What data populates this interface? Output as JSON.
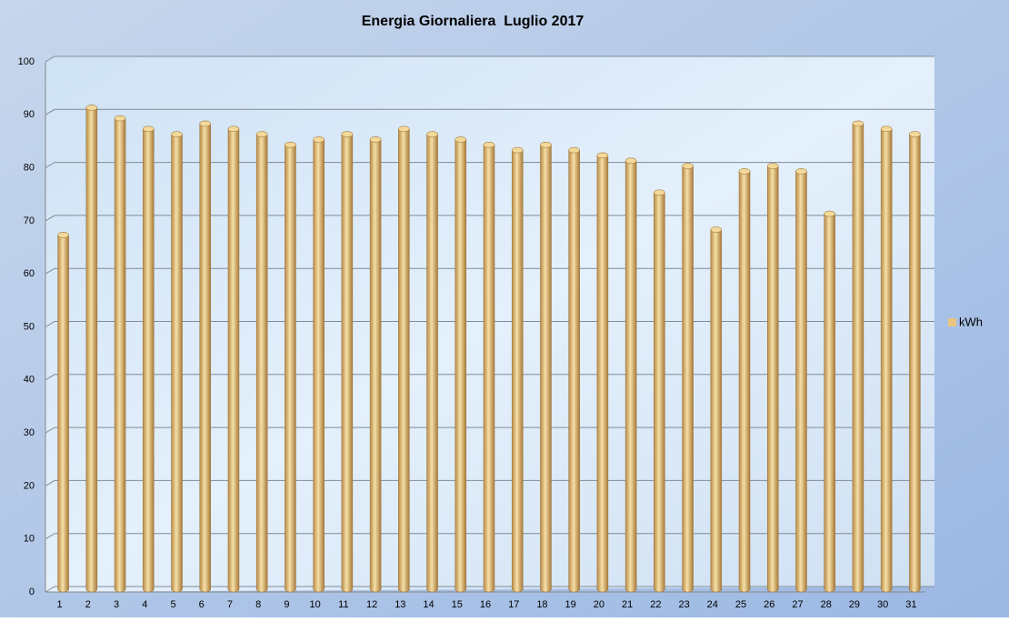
{
  "chart_data": {
    "type": "bar",
    "title": "Energia Giornaliera  Luglio 2017",
    "categories": [
      "1",
      "2",
      "3",
      "4",
      "5",
      "6",
      "7",
      "8",
      "9",
      "10",
      "11",
      "12",
      "13",
      "14",
      "15",
      "16",
      "17",
      "18",
      "19",
      "20",
      "21",
      "22",
      "23",
      "24",
      "25",
      "26",
      "27",
      "28",
      "29",
      "30",
      "31"
    ],
    "series": [
      {
        "name": "kWh",
        "color": "#e8c680",
        "values": [
          67,
          91,
          89,
          87,
          86,
          88,
          87,
          86,
          84,
          85,
          86,
          85,
          87,
          86,
          85,
          84,
          83,
          84,
          83,
          82,
          81,
          75,
          80,
          68,
          79,
          80,
          79,
          71,
          88,
          87,
          86
        ]
      }
    ],
    "ylim": [
      0,
      100
    ],
    "yticks": [
      0,
      10,
      20,
      30,
      40,
      50,
      60,
      70,
      80,
      90,
      100
    ],
    "grid": true,
    "legend": "right"
  }
}
